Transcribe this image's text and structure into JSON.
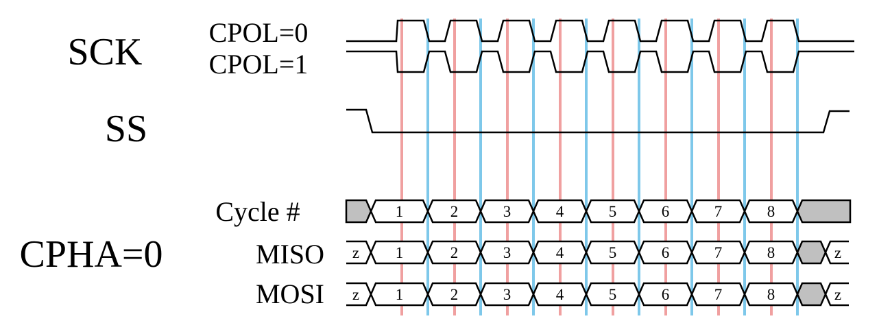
{
  "labels": {
    "sck": "SCK",
    "cpol0": "CPOL=0",
    "cpol1": "CPOL=1",
    "ss": "SS",
    "cycle": "Cycle #",
    "cpha": "CPHA=0",
    "miso": "MISO",
    "mosi": "MOSI"
  },
  "cycles": [
    "1",
    "2",
    "3",
    "4",
    "5",
    "6",
    "7",
    "8"
  ],
  "hiz": "z",
  "colors": {
    "sample_edge": "#f0a0a0",
    "shift_edge": "#7ec8ea",
    "idle_fill": "#c0c0c0",
    "line": "#000000"
  }
}
